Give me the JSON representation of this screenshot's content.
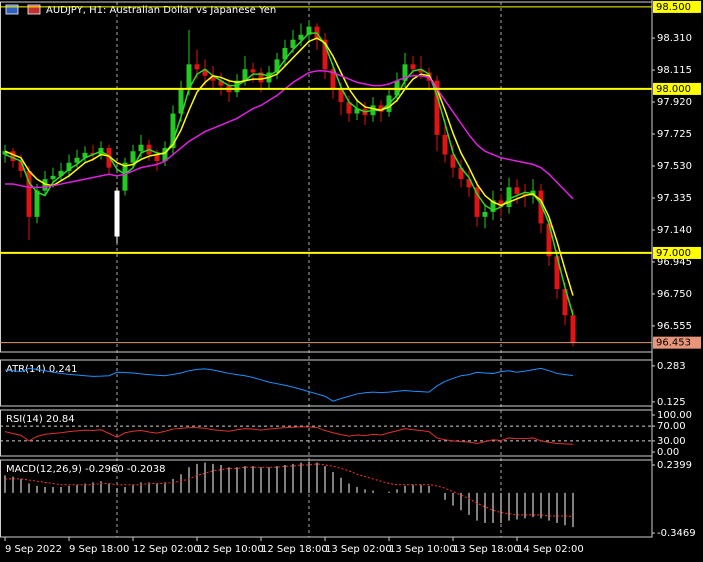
{
  "chart_data": [
    {
      "type": "candlestick",
      "title": "AUDJPY, H1:  Australian Dollar vs Japanese Yen",
      "categories": [
        "9 Sep 2022",
        null,
        null,
        null,
        null,
        null,
        null,
        null,
        "9 Sep 18:00",
        null,
        null,
        null,
        null,
        null,
        null,
        null,
        "12 Sep 02:00",
        null,
        null,
        null,
        null,
        null,
        null,
        null,
        "12 Sep 10:00",
        null,
        null,
        null,
        null,
        null,
        null,
        null,
        "12 Sep 18:00",
        null,
        null,
        null,
        null,
        null,
        null,
        null,
        "13 Sep 02:00",
        null,
        null,
        null,
        null,
        null,
        null,
        null,
        "13 Sep 10:00",
        null,
        null,
        null,
        null,
        null,
        null,
        null,
        "13 Sep 18:00",
        null,
        null,
        null,
        null,
        null,
        null,
        null,
        "14 Sep 02:00",
        null,
        null,
        null,
        null,
        null,
        null,
        null
      ],
      "candles": [
        [
          97.6,
          97.66,
          97.55,
          97.62
        ],
        [
          97.62,
          97.64,
          97.52,
          97.56
        ],
        [
          97.56,
          97.6,
          97.46,
          97.5
        ],
        [
          97.5,
          97.53,
          97.08,
          97.22
        ],
        [
          97.22,
          97.42,
          97.18,
          97.38
        ],
        [
          97.38,
          97.5,
          97.35,
          97.45
        ],
        [
          97.45,
          97.52,
          97.4,
          97.47
        ],
        [
          97.47,
          97.55,
          97.44,
          97.5
        ],
        [
          97.5,
          97.6,
          97.46,
          97.55
        ],
        [
          97.55,
          97.63,
          97.52,
          97.58
        ],
        [
          97.58,
          97.65,
          97.55,
          97.61
        ],
        [
          97.61,
          97.66,
          97.56,
          97.6
        ],
        [
          97.6,
          97.68,
          97.57,
          97.64
        ],
        [
          97.64,
          97.66,
          97.48,
          97.52
        ],
        [
          97.1,
          97.4,
          97.06,
          97.38
        ],
        [
          97.38,
          97.58,
          97.35,
          97.55
        ],
        [
          97.55,
          97.66,
          97.52,
          97.62
        ],
        [
          97.62,
          97.72,
          97.58,
          97.66
        ],
        [
          97.66,
          97.69,
          97.56,
          97.6
        ],
        [
          97.6,
          97.63,
          97.5,
          97.56
        ],
        [
          97.56,
          97.68,
          97.53,
          97.64
        ],
        [
          97.64,
          97.9,
          97.6,
          97.85
        ],
        [
          97.85,
          98.05,
          97.8,
          98.0
        ],
        [
          98.0,
          98.36,
          97.96,
          98.15
        ],
        [
          98.15,
          98.24,
          98.06,
          98.12
        ],
        [
          98.12,
          98.18,
          98.02,
          98.08
        ],
        [
          98.08,
          98.14,
          98.0,
          98.05
        ],
        [
          98.05,
          98.1,
          97.96,
          98.02
        ],
        [
          98.02,
          98.06,
          97.92,
          97.98
        ],
        [
          97.98,
          98.09,
          97.95,
          98.05
        ],
        [
          98.05,
          98.2,
          98.02,
          98.12
        ],
        [
          98.12,
          98.16,
          98.04,
          98.1
        ],
        [
          98.1,
          98.13,
          97.98,
          98.04
        ],
        [
          98.04,
          98.14,
          98.0,
          98.1
        ],
        [
          98.1,
          98.22,
          98.06,
          98.18
        ],
        [
          98.18,
          98.3,
          98.14,
          98.25
        ],
        [
          98.25,
          98.36,
          98.22,
          98.3
        ],
        [
          98.3,
          98.4,
          98.26,
          98.33
        ],
        [
          98.33,
          98.42,
          98.28,
          98.38
        ],
        [
          98.38,
          98.4,
          98.24,
          98.3
        ],
        [
          98.3,
          98.34,
          98.06,
          98.12
        ],
        [
          98.12,
          98.16,
          97.94,
          98.0
        ],
        [
          98.0,
          98.04,
          97.84,
          97.92
        ],
        [
          97.92,
          97.96,
          97.8,
          97.85
        ],
        [
          97.85,
          97.94,
          97.81,
          97.88
        ],
        [
          97.88,
          97.92,
          97.78,
          97.84
        ],
        [
          97.84,
          97.95,
          97.8,
          97.9
        ],
        [
          97.9,
          97.93,
          97.8,
          97.86
        ],
        [
          97.86,
          98.0,
          97.83,
          97.96
        ],
        [
          97.96,
          98.1,
          97.92,
          98.05
        ],
        [
          98.05,
          98.22,
          98.01,
          98.15
        ],
        [
          98.15,
          98.2,
          98.08,
          98.12
        ],
        [
          98.12,
          98.2,
          98.06,
          98.1
        ],
        [
          98.1,
          98.13,
          97.99,
          98.05
        ],
        [
          98.05,
          98.08,
          97.62,
          97.72
        ],
        [
          97.72,
          97.78,
          97.55,
          97.6
        ],
        [
          97.6,
          97.66,
          97.46,
          97.52
        ],
        [
          97.52,
          97.57,
          97.4,
          97.45
        ],
        [
          97.45,
          97.5,
          97.34,
          97.4
        ],
        [
          97.4,
          97.44,
          97.16,
          97.22
        ],
        [
          97.22,
          97.3,
          97.15,
          97.25
        ],
        [
          97.25,
          97.38,
          97.2,
          97.32
        ],
        [
          97.32,
          97.36,
          97.22,
          97.28
        ],
        [
          97.28,
          97.46,
          97.24,
          97.4
        ],
        [
          97.4,
          97.45,
          97.3,
          97.36
        ],
        [
          97.36,
          97.42,
          97.28,
          97.35
        ],
        [
          97.35,
          97.45,
          97.3,
          97.38
        ],
        [
          97.38,
          97.42,
          97.12,
          97.18
        ],
        [
          97.18,
          97.22,
          96.92,
          96.98
        ],
        [
          96.98,
          97.02,
          96.72,
          96.78
        ],
        [
          96.78,
          96.82,
          96.56,
          96.62
        ],
        [
          96.62,
          96.66,
          96.43,
          96.453
        ]
      ],
      "up_color": "#26c826",
      "down_color": "#e01414",
      "doji_color": "#ffffff",
      "series": [
        {
          "color": "#2bd92b",
          "values": [
            97.6,
            97.58,
            97.56,
            97.43,
            97.37,
            97.35,
            97.43,
            97.47,
            97.51,
            97.54,
            97.58,
            97.6,
            97.62,
            97.59,
            97.51,
            97.48,
            97.52,
            97.61,
            97.63,
            97.61,
            97.6,
            97.68,
            97.83,
            98.0,
            98.09,
            98.12,
            98.08,
            98.05,
            98.02,
            98.02,
            98.05,
            98.09,
            98.09,
            98.08,
            98.11,
            98.18,
            98.24,
            98.29,
            98.34,
            98.34,
            98.27,
            98.14,
            98.01,
            97.92,
            97.88,
            97.86,
            97.87,
            97.87,
            97.91,
            97.96,
            98.05,
            98.11,
            98.12,
            98.09,
            97.96,
            97.79,
            97.61,
            97.52,
            97.46,
            97.36,
            97.29,
            97.26,
            97.28,
            97.33,
            97.35,
            97.37,
            97.36,
            97.3,
            97.18,
            96.98,
            96.79,
            96.62
          ]
        },
        {
          "color": "#ffff00",
          "values": [
            97.62,
            97.6,
            97.58,
            97.5,
            97.45,
            97.42,
            97.41,
            97.44,
            97.47,
            97.51,
            97.55,
            97.57,
            97.6,
            97.59,
            97.55,
            97.53,
            97.54,
            97.57,
            97.59,
            97.6,
            97.61,
            97.66,
            97.75,
            97.87,
            97.98,
            98.04,
            98.08,
            98.07,
            98.05,
            98.04,
            98.05,
            98.06,
            98.06,
            98.07,
            98.09,
            98.14,
            98.19,
            98.24,
            98.29,
            98.31,
            98.28,
            98.2,
            98.1,
            98.0,
            97.93,
            97.89,
            97.88,
            97.87,
            97.89,
            97.93,
            98.0,
            98.06,
            98.09,
            98.08,
            98.0,
            97.87,
            97.73,
            97.61,
            97.52,
            97.42,
            97.35,
            97.31,
            97.29,
            97.31,
            97.33,
            97.35,
            97.36,
            97.32,
            97.22,
            97.07,
            96.9,
            96.74
          ]
        },
        {
          "color": "#e020e0",
          "values": [
            97.42,
            97.42,
            97.41,
            97.4,
            97.4,
            97.4,
            97.41,
            97.42,
            97.43,
            97.44,
            97.45,
            97.46,
            97.47,
            97.48,
            97.47,
            97.48,
            97.5,
            97.52,
            97.53,
            97.54,
            97.56,
            97.6,
            97.64,
            97.68,
            97.71,
            97.74,
            97.76,
            97.78,
            97.8,
            97.82,
            97.85,
            97.88,
            97.9,
            97.93,
            97.96,
            98.0,
            98.04,
            98.07,
            98.1,
            98.11,
            98.11,
            98.1,
            98.08,
            98.06,
            98.04,
            98.03,
            98.02,
            98.02,
            98.03,
            98.05,
            98.07,
            98.08,
            98.08,
            98.07,
            98.0,
            97.93,
            97.86,
            97.79,
            97.72,
            97.66,
            97.62,
            97.6,
            97.58,
            97.57,
            97.56,
            97.55,
            97.54,
            97.52,
            97.48,
            97.43,
            97.38,
            97.33
          ]
        }
      ],
      "ylim": [
        96.396,
        98.53
      ],
      "yticks": [
        {
          "value": 98.31,
          "label": "98.310"
        },
        {
          "value": 98.115,
          "label": "98.115"
        },
        {
          "value": 97.92,
          "label": "97.920"
        },
        {
          "value": 97.725,
          "label": "97.725"
        },
        {
          "value": 97.53,
          "label": "97.530"
        },
        {
          "value": 97.335,
          "label": "97.335"
        },
        {
          "value": 97.14,
          "label": "97.140"
        },
        {
          "value": 96.945,
          "label": "96.945"
        },
        {
          "value": 96.75,
          "label": "96.750"
        },
        {
          "value": 96.555,
          "label": "96.555"
        }
      ],
      "levels": [
        {
          "value": 98.5,
          "label": "98.500"
        },
        {
          "value": 98,
          "label": "98.000"
        },
        {
          "value": 97,
          "label": "97.000"
        }
      ],
      "level_color": "#ffff00",
      "last_price": {
        "value": 96.453,
        "label": "96.453"
      },
      "last_price_color": "#e8967a"
    },
    {
      "type": "line",
      "title": "ATR(14) 0.241",
      "series": [
        {
          "color": "#1e90ff",
          "values": [
            0.265,
            0.262,
            0.258,
            0.272,
            0.268,
            0.262,
            0.255,
            0.25,
            0.246,
            0.243,
            0.24,
            0.237,
            0.238,
            0.24,
            0.255,
            0.254,
            0.252,
            0.248,
            0.245,
            0.242,
            0.24,
            0.246,
            0.252,
            0.262,
            0.268,
            0.27,
            0.265,
            0.258,
            0.25,
            0.245,
            0.24,
            0.232,
            0.222,
            0.212,
            0.205,
            0.198,
            0.19,
            0.18,
            0.17,
            0.16,
            0.15,
            0.128,
            0.14,
            0.15,
            0.16,
            0.165,
            0.168,
            0.166,
            0.168,
            0.172,
            0.175,
            0.172,
            0.17,
            0.168,
            0.195,
            0.215,
            0.228,
            0.24,
            0.245,
            0.255,
            0.252,
            0.25,
            0.258,
            0.262,
            0.255,
            0.26,
            0.266,
            0.272,
            0.262,
            0.25,
            0.245,
            0.241
          ]
        }
      ],
      "ylim": [
        0.107,
        0.309
      ],
      "yticks": [
        0.283,
        0.125
      ]
    },
    {
      "type": "line",
      "title": "RSI(14) 20.84",
      "series": [
        {
          "color": "#e03030",
          "values": [
            55,
            50,
            45,
            30,
            42,
            48,
            50,
            52,
            55,
            57,
            59,
            58,
            60,
            50,
            40,
            52,
            56,
            58,
            54,
            51,
            56,
            62,
            64,
            66,
            66,
            64,
            60,
            58,
            56,
            60,
            63,
            62,
            59,
            62,
            64,
            66,
            67,
            68,
            68,
            66,
            58,
            52,
            47,
            43,
            46,
            44,
            48,
            46,
            52,
            57,
            63,
            60,
            58,
            55,
            38,
            33,
            30,
            28,
            27,
            23,
            28,
            33,
            31,
            38,
            36,
            36,
            38,
            30,
            26,
            23,
            22,
            20.84
          ]
        }
      ],
      "ylim": [
        -10.8,
        113.5
      ],
      "yticks": [
        {
          "value": 100,
          "label": "100.00"
        },
        {
          "value": 70,
          "label": "70.00"
        },
        {
          "value": 30,
          "label": "30.00"
        },
        {
          "value": 0,
          "label": "0.00"
        }
      ],
      "levels": [
        70,
        30
      ]
    },
    {
      "type": "bar-line",
      "title": "MACD(12,26,9) -0.2960 -0.2038",
      "series": [
        {
          "style": "histogram",
          "color": "#ffffff",
          "values": [
            0.15,
            0.14,
            0.12,
            0.08,
            0.06,
            0.05,
            0.05,
            0.05,
            0.06,
            0.07,
            0.08,
            0.09,
            0.1,
            0.08,
            0.04,
            0.05,
            0.07,
            0.09,
            0.09,
            0.08,
            0.09,
            0.12,
            0.16,
            0.22,
            0.25,
            0.26,
            0.25,
            0.24,
            0.22,
            0.22,
            0.23,
            0.23,
            0.22,
            0.22,
            0.23,
            0.24,
            0.25,
            0.26,
            0.27,
            0.26,
            0.23,
            0.18,
            0.13,
            0.08,
            0.05,
            0.03,
            0.02,
            0.0,
            0.01,
            0.03,
            0.06,
            0.07,
            0.07,
            0.06,
            0.0,
            -0.06,
            -0.11,
            -0.15,
            -0.19,
            -0.24,
            -0.26,
            -0.26,
            -0.26,
            -0.24,
            -0.23,
            -0.22,
            -0.21,
            -0.22,
            -0.24,
            -0.26,
            -0.28,
            -0.296
          ]
        },
        {
          "style": "dotted",
          "color": "#ff3030",
          "values": [
            0.12,
            0.12,
            0.12,
            0.11,
            0.1,
            0.09,
            0.08,
            0.07,
            0.07,
            0.07,
            0.07,
            0.07,
            0.08,
            0.08,
            0.07,
            0.07,
            0.07,
            0.07,
            0.08,
            0.08,
            0.08,
            0.09,
            0.1,
            0.12,
            0.15,
            0.17,
            0.19,
            0.2,
            0.21,
            0.21,
            0.22,
            0.22,
            0.22,
            0.22,
            0.22,
            0.23,
            0.23,
            0.24,
            0.24,
            0.25,
            0.24,
            0.23,
            0.21,
            0.19,
            0.16,
            0.14,
            0.12,
            0.1,
            0.08,
            0.07,
            0.07,
            0.07,
            0.07,
            0.07,
            0.06,
            0.04,
            0.01,
            -0.02,
            -0.05,
            -0.09,
            -0.12,
            -0.15,
            -0.17,
            -0.18,
            -0.19,
            -0.19,
            -0.19,
            -0.19,
            -0.2,
            -0.2,
            -0.2,
            -0.2038
          ]
        }
      ],
      "ylim": [
        -0.381,
        0.283
      ],
      "yticks": [
        0.2399,
        -0.3469
      ]
    }
  ]
}
